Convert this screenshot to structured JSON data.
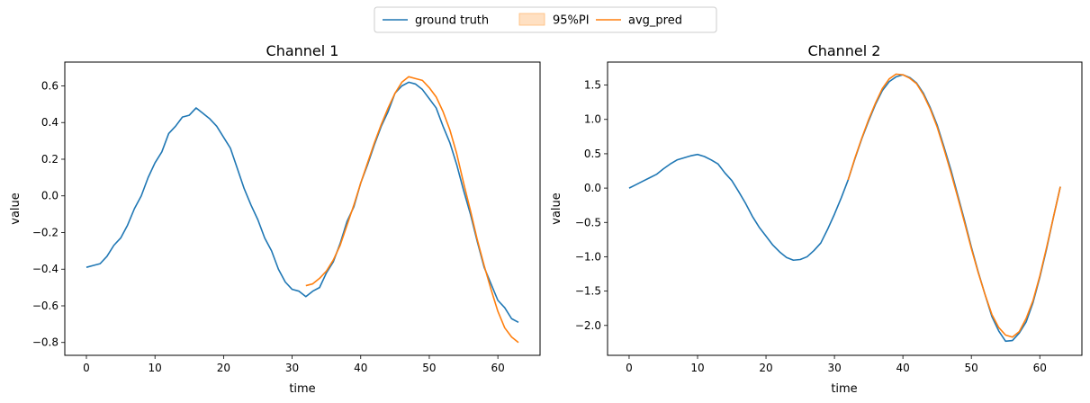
{
  "legend": {
    "entries": [
      {
        "label": "ground truth",
        "color": "#1f77b4",
        "kind": "line"
      },
      {
        "label": "95%PI",
        "color": "#ffbb78",
        "kind": "patch"
      },
      {
        "label": "avg_pred",
        "color": "#ff7f0e",
        "kind": "line"
      }
    ]
  },
  "chart_data": [
    {
      "type": "line",
      "title": "Channel 1",
      "xlabel": "time",
      "ylabel": "value",
      "xlim": [
        -3.15,
        66.15
      ],
      "ylim": [
        -0.87,
        0.73
      ],
      "xticks": [
        0,
        10,
        20,
        30,
        40,
        50,
        60
      ],
      "yticks": [
        -0.8,
        -0.6,
        -0.4,
        -0.2,
        0.0,
        0.2,
        0.4,
        0.6
      ],
      "ytick_labels": [
        "−0.8",
        "−0.6",
        "−0.4",
        "−0.2",
        "0.0",
        "0.2",
        "0.4",
        "0.6"
      ],
      "grid": false,
      "series": [
        {
          "name": "ground truth",
          "color": "#1f77b4",
          "x": [
            0,
            1,
            2,
            3,
            4,
            5,
            6,
            7,
            8,
            9,
            10,
            11,
            12,
            13,
            14,
            15,
            16,
            17,
            18,
            19,
            20,
            21,
            22,
            23,
            24,
            25,
            26,
            27,
            28,
            29,
            30,
            31,
            32,
            33,
            34,
            35,
            36,
            37,
            38,
            39,
            40,
            41,
            42,
            43,
            44,
            45,
            46,
            47,
            48,
            49,
            50,
            51,
            52,
            53,
            54,
            55,
            56,
            57,
            58,
            59,
            60,
            61,
            62,
            63
          ],
          "values": [
            -0.39,
            -0.38,
            -0.37,
            -0.33,
            -0.27,
            -0.23,
            -0.16,
            -0.07,
            0.0,
            0.1,
            0.18,
            0.24,
            0.34,
            0.38,
            0.43,
            0.44,
            0.48,
            0.45,
            0.42,
            0.38,
            0.32,
            0.26,
            0.15,
            0.04,
            -0.05,
            -0.13,
            -0.23,
            -0.3,
            -0.4,
            -0.47,
            -0.51,
            -0.52,
            -0.55,
            -0.52,
            -0.5,
            -0.42,
            -0.36,
            -0.26,
            -0.14,
            -0.06,
            0.07,
            0.17,
            0.28,
            0.38,
            0.46,
            0.56,
            0.6,
            0.62,
            0.61,
            0.58,
            0.53,
            0.48,
            0.38,
            0.29,
            0.17,
            0.03,
            -0.1,
            -0.25,
            -0.39,
            -0.48,
            -0.57,
            -0.61,
            -0.67,
            -0.69
          ]
        },
        {
          "name": "avg_pred",
          "color": "#ff7f0e",
          "x": [
            32,
            33,
            34,
            35,
            36,
            37,
            38,
            39,
            40,
            41,
            42,
            43,
            44,
            45,
            46,
            47,
            48,
            49,
            50,
            51,
            52,
            53,
            54,
            55,
            56,
            57,
            58,
            59,
            60,
            61,
            62,
            63
          ],
          "values": [
            -0.49,
            -0.48,
            -0.45,
            -0.41,
            -0.35,
            -0.27,
            -0.16,
            -0.05,
            0.07,
            0.18,
            0.29,
            0.39,
            0.48,
            0.56,
            0.62,
            0.65,
            0.64,
            0.63,
            0.59,
            0.54,
            0.46,
            0.36,
            0.23,
            0.07,
            -0.08,
            -0.24,
            -0.38,
            -0.51,
            -0.63,
            -0.72,
            -0.77,
            -0.8
          ]
        }
      ]
    },
    {
      "type": "line",
      "title": "Channel 2",
      "xlabel": "time",
      "ylabel": "value",
      "xlim": [
        -3.15,
        66.15
      ],
      "ylim": [
        -2.435,
        1.835
      ],
      "xticks": [
        0,
        10,
        20,
        30,
        40,
        50,
        60
      ],
      "yticks": [
        -2.0,
        -1.5,
        -1.0,
        -0.5,
        0.0,
        0.5,
        1.0,
        1.5
      ],
      "ytick_labels": [
        "−2.0",
        "−1.5",
        "−1.0",
        "−0.5",
        "0.0",
        "0.5",
        "1.0",
        "1.5"
      ],
      "grid": false,
      "series": [
        {
          "name": "ground truth",
          "color": "#1f77b4",
          "x": [
            0,
            1,
            2,
            3,
            4,
            5,
            6,
            7,
            8,
            9,
            10,
            11,
            12,
            13,
            14,
            15,
            16,
            17,
            18,
            19,
            20,
            21,
            22,
            23,
            24,
            25,
            26,
            27,
            28,
            29,
            30,
            31,
            32,
            33,
            34,
            35,
            36,
            37,
            38,
            39,
            40,
            41,
            42,
            43,
            44,
            45,
            46,
            47,
            48,
            49,
            50,
            51,
            52,
            53,
            54,
            55,
            56,
            57,
            58,
            59,
            60,
            61,
            62,
            63
          ],
          "values": [
            0.0,
            0.05,
            0.1,
            0.15,
            0.2,
            0.28,
            0.35,
            0.41,
            0.44,
            0.47,
            0.49,
            0.46,
            0.41,
            0.35,
            0.22,
            0.11,
            -0.05,
            -0.22,
            -0.41,
            -0.57,
            -0.7,
            -0.83,
            -0.93,
            -1.01,
            -1.05,
            -1.04,
            -1.0,
            -0.91,
            -0.8,
            -0.6,
            -0.38,
            -0.14,
            0.12,
            0.43,
            0.72,
            0.98,
            1.22,
            1.42,
            1.55,
            1.62,
            1.65,
            1.61,
            1.53,
            1.38,
            1.17,
            0.92,
            0.6,
            0.27,
            -0.1,
            -0.47,
            -0.86,
            -1.22,
            -1.55,
            -1.87,
            -2.08,
            -2.23,
            -2.22,
            -2.11,
            -1.95,
            -1.67,
            -1.3,
            -0.88,
            -0.42,
            0.02
          ]
        },
        {
          "name": "avg_pred",
          "color": "#ff7f0e",
          "x": [
            32,
            33,
            34,
            35,
            36,
            37,
            38,
            39,
            40,
            41,
            42,
            43,
            44,
            45,
            46,
            47,
            48,
            49,
            50,
            51,
            52,
            53,
            54,
            55,
            56,
            57,
            58,
            59,
            60,
            61,
            62,
            63
          ],
          "values": [
            0.12,
            0.44,
            0.73,
            1.0,
            1.24,
            1.45,
            1.59,
            1.66,
            1.65,
            1.6,
            1.52,
            1.36,
            1.15,
            0.89,
            0.57,
            0.23,
            -0.13,
            -0.5,
            -0.88,
            -1.23,
            -1.55,
            -1.84,
            -2.03,
            -2.14,
            -2.17,
            -2.09,
            -1.9,
            -1.64,
            -1.28,
            -0.86,
            -0.42,
            0.02
          ]
        }
      ]
    }
  ]
}
